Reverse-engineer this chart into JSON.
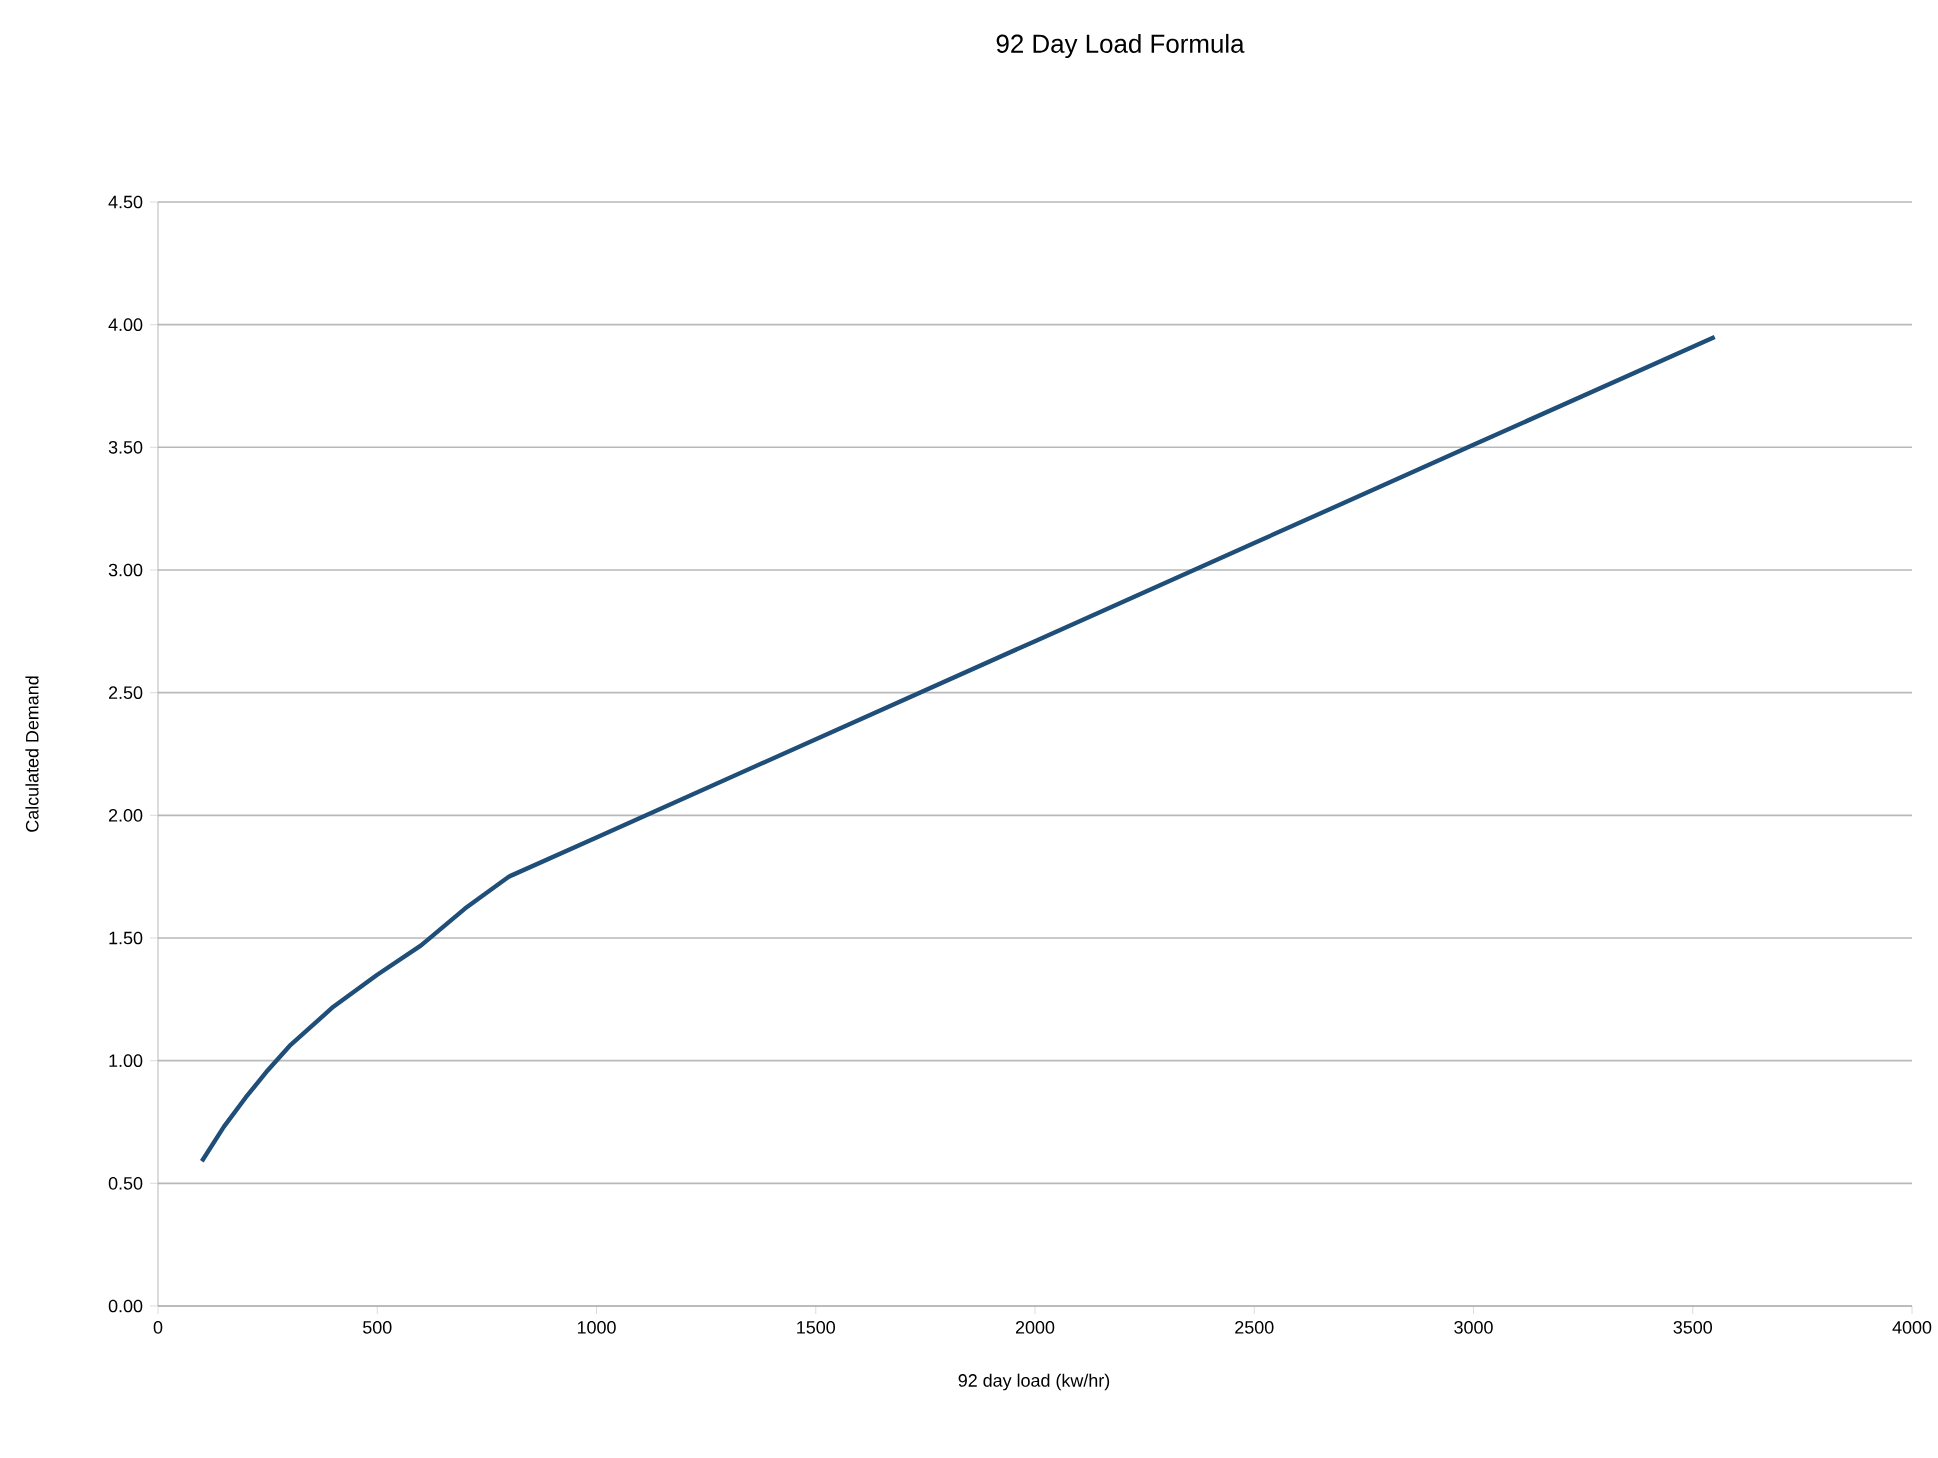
{
  "chart_data": {
    "type": "line",
    "title": "92 Day Load Formula",
    "xlabel": "92 day load (kw/hr)",
    "ylabel": "Calculated Demand",
    "series": [
      {
        "color": "#1f4e79",
        "x": [
          100,
          150,
          200,
          250,
          300,
          400,
          500,
          600,
          700,
          800,
          1000,
          1500,
          2000,
          2500,
          3000,
          3550
        ],
        "values": [
          0.59,
          0.73,
          0.85,
          0.96,
          1.06,
          1.22,
          1.35,
          1.47,
          1.62,
          1.75,
          1.91,
          2.31,
          2.71,
          3.11,
          3.51,
          3.95
        ]
      }
    ],
    "xlim": [
      0,
      4000
    ],
    "ylim": [
      0,
      4.5
    ],
    "xticks": [
      0,
      500,
      1000,
      1500,
      2000,
      2500,
      3000,
      3500,
      4000
    ],
    "yticks": [
      {
        "value": 0,
        "label": "0.00"
      },
      {
        "value": 0.5,
        "label": "0.50"
      },
      {
        "value": 1,
        "label": "1.00"
      },
      {
        "value": 1.5,
        "label": "1.50"
      },
      {
        "value": 2,
        "label": "2.00"
      },
      {
        "value": 2.5,
        "label": "2.50"
      },
      {
        "value": 3,
        "label": "3.00"
      },
      {
        "value": 3.5,
        "label": "3.50"
      },
      {
        "value": 4,
        "label": "4.00"
      },
      {
        "value": 4.5,
        "label": "4.50"
      }
    ],
    "grid": "y",
    "marker": "none",
    "line_style": "solid"
  }
}
